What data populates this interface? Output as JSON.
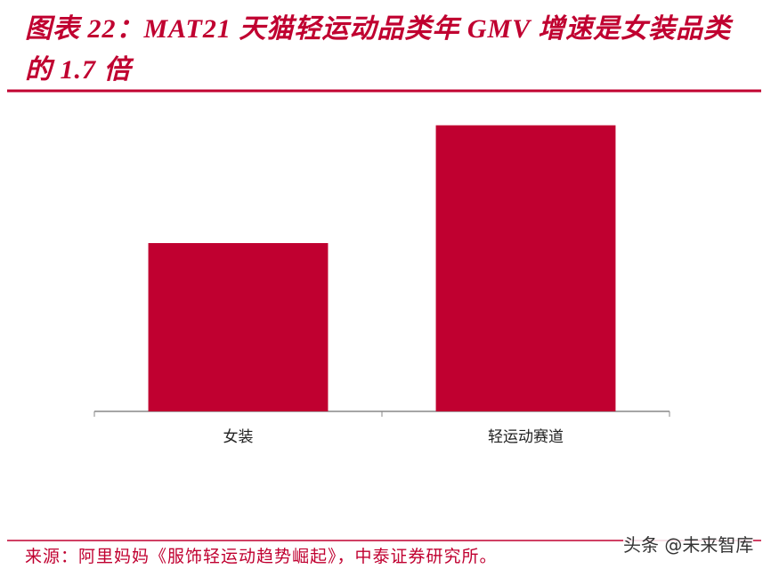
{
  "chart_data": {
    "type": "bar",
    "title": "图表 22：MAT21 天猫轻运动品类年 GMV 增速是女装品类的 1.7 倍",
    "categories": [
      "女装",
      "轻运动赛道"
    ],
    "values": [
      1,
      1.7
    ],
    "color": "#c00030",
    "ylim": [
      0,
      2
    ],
    "source": "来源：阿里妈妈《服饰轻运动趋势崛起》，中泰证券研究所。",
    "watermark": "头条 @未来智库"
  }
}
